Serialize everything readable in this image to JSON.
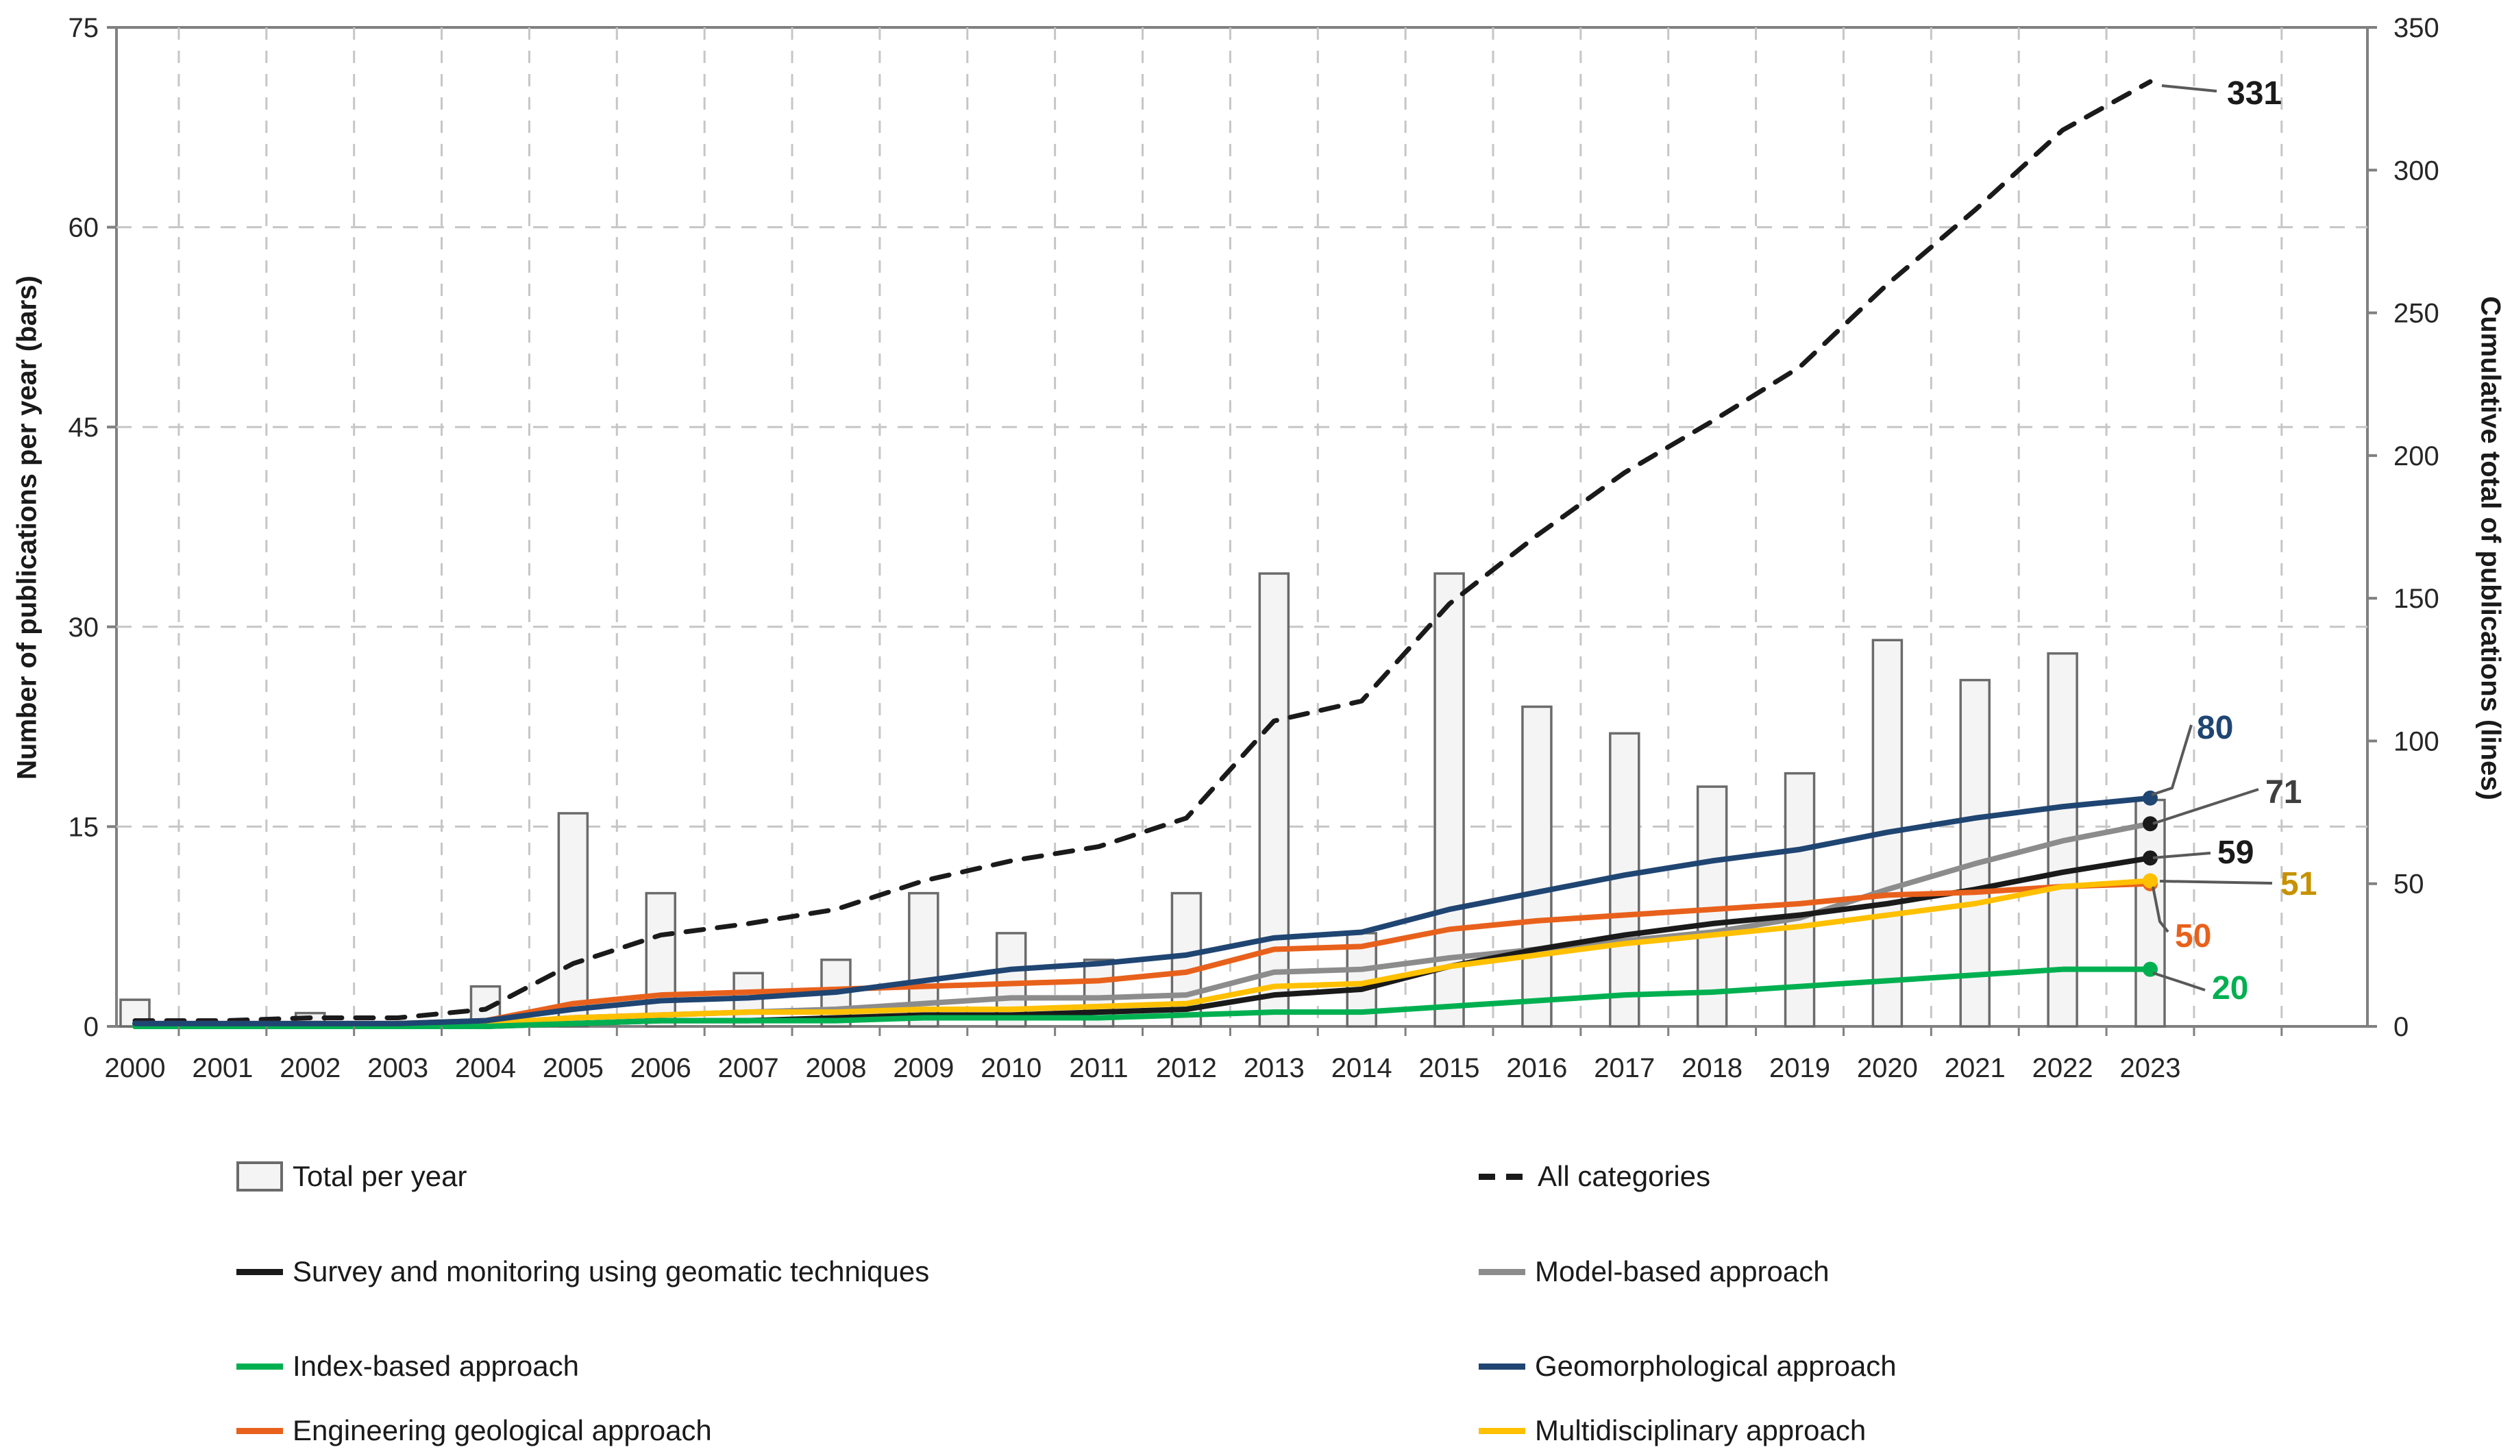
{
  "figure": {
    "background": "#ffffff"
  },
  "chart_data": {
    "type": "bar+line",
    "title": "",
    "categories": [
      2000,
      2001,
      2002,
      2003,
      2004,
      2005,
      2006,
      2007,
      2008,
      2009,
      2010,
      2011,
      2012,
      2013,
      2014,
      2015,
      2016,
      2017,
      2018,
      2019,
      2020,
      2021,
      2022,
      2023
    ],
    "bars": {
      "name": "Total per year",
      "axis": "left",
      "fill": "#f4f4f4",
      "stroke": "#6b6b6b",
      "values": [
        2,
        0,
        1,
        0,
        3,
        16,
        10,
        4,
        5,
        10,
        7,
        5,
        10,
        34,
        7,
        34,
        24,
        22,
        18,
        19,
        29,
        26,
        28,
        17
      ]
    },
    "lines": [
      {
        "name": "All categories",
        "axis": "right",
        "style": "dashed",
        "color": "#1a1a1a",
        "values": [
          2,
          2,
          3,
          3,
          6,
          22,
          32,
          36,
          41,
          51,
          58,
          63,
          73,
          107,
          114,
          148,
          172,
          194,
          212,
          231,
          260,
          286,
          314,
          331
        ],
        "end_label": "331",
        "end_label_color": "#1a1a1a"
      },
      {
        "name": "Model-based approach",
        "axis": "right",
        "style": "solid",
        "color": "#8c8c8c",
        "dot_color": "#1a1a1a",
        "values": [
          0,
          0,
          1,
          1,
          1,
          3,
          4,
          5,
          6,
          8,
          10,
          10,
          11,
          19,
          20,
          24,
          27,
          30,
          33,
          38,
          48,
          57,
          65,
          71
        ],
        "end_label": "71",
        "end_label_color": "#3f3f3f"
      },
      {
        "name": "Survey and monitoring using geomatic techniques",
        "axis": "right",
        "style": "solid",
        "color": "#1a1a1a",
        "dot_color": "#1a1a1a",
        "values": [
          0,
          0,
          0,
          0,
          0,
          1,
          2,
          2,
          3,
          4,
          4,
          5,
          6,
          11,
          13,
          21,
          27,
          32,
          36,
          39,
          43,
          48,
          54,
          59
        ],
        "end_label": "59",
        "end_label_color": "#1a1a1a"
      },
      {
        "name": "Engineering geological approach",
        "axis": "right",
        "style": "solid",
        "color": "#e8611c",
        "dot_color": "#e8611c",
        "values": [
          1,
          1,
          1,
          1,
          2,
          8,
          11,
          12,
          13,
          14,
          15,
          16,
          19,
          27,
          28,
          34,
          37,
          39,
          41,
          43,
          46,
          47,
          49,
          50
        ],
        "end_label": "50",
        "end_label_color": "#e8611c"
      },
      {
        "name": "Multidisciplinary approach",
        "axis": "right",
        "style": "solid",
        "color": "#ffc000",
        "dot_color": "#ffc000",
        "values": [
          0,
          0,
          0,
          0,
          1,
          3,
          4,
          5,
          5,
          6,
          6,
          7,
          8,
          14,
          15,
          21,
          25,
          29,
          32,
          35,
          39,
          43,
          49,
          51
        ],
        "end_label": "51",
        "end_label_color": "#c79100"
      },
      {
        "name": "Index-based approach",
        "axis": "right",
        "style": "solid",
        "color": "#00b050",
        "dot_color": "#00b050",
        "values": [
          0,
          0,
          0,
          0,
          0,
          1,
          2,
          2,
          2,
          3,
          3,
          3,
          4,
          5,
          5,
          7,
          9,
          11,
          12,
          14,
          16,
          18,
          20,
          20
        ],
        "end_label": "20",
        "end_label_color": "#00b050"
      },
      {
        "name": "Geomorphological approach",
        "axis": "right",
        "style": "solid",
        "color": "#1f4572",
        "dot_color": "#1f4572",
        "values": [
          1,
          1,
          1,
          1,
          2,
          6,
          9,
          10,
          12,
          16,
          20,
          22,
          25,
          31,
          33,
          41,
          47,
          53,
          58,
          62,
          68,
          73,
          77,
          80
        ],
        "end_label": "80",
        "end_label_color": "#1f4572"
      }
    ],
    "left_axis": {
      "label": "Number of publications  per year (bars)",
      "ticks": [
        0,
        15,
        30,
        45,
        60,
        75
      ],
      "min": 0,
      "max": 75
    },
    "right_axis": {
      "label": "Cumulative total of publications (lines)",
      "ticks": [
        0,
        50,
        100,
        150,
        200,
        250,
        300,
        350
      ],
      "min": 0,
      "max": 350
    },
    "grid": true,
    "legend_position": "bottom",
    "legend": [
      [
        {
          "swatch": "bar",
          "color": "#6b6b6b",
          "label": "Total per year"
        },
        {
          "swatch": "dashed",
          "color": "#1a1a1a",
          "label": "All categories"
        }
      ],
      [
        {
          "swatch": "line",
          "color": "#1a1a1a",
          "label": "Survey and monitoring using geomatic techniques"
        },
        {
          "swatch": "line",
          "color": "#8c8c8c",
          "label": "Model-based approach"
        }
      ],
      [
        {
          "swatch": "line",
          "color": "#00b050",
          "label": "Index-based approach"
        },
        {
          "swatch": "line",
          "color": "#1f4572",
          "label": "Geomorphological approach"
        }
      ],
      [
        {
          "swatch": "line",
          "color": "#e8611c",
          "label": "Engineering geological approach"
        },
        {
          "swatch": "line",
          "color": "#ffc000",
          "label": "Multidisciplinary approach"
        }
      ]
    ]
  }
}
